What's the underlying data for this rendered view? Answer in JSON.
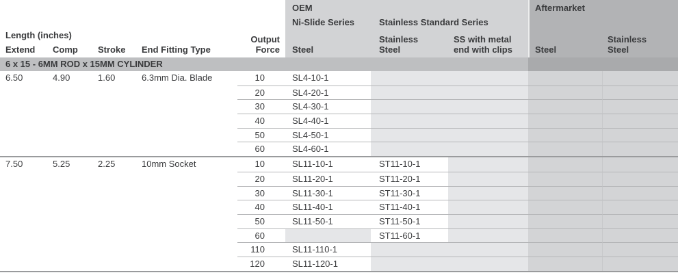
{
  "header": {
    "group_oem": "OEM",
    "group_aftermarket": "Aftermarket",
    "series_nislide": "Ni-Slide Series",
    "series_stainless_standard": "Stainless Standard Series",
    "length_label": "Length (inches)",
    "columns": {
      "extend": "Extend",
      "comp": "Comp",
      "stroke": "Stroke",
      "end_fitting": "End Fitting Type",
      "output_l1": "Output",
      "output_l2": "Force",
      "oem_steel": "Steel",
      "oem_stainless_l1": "Stainless",
      "oem_stainless_l2": "Steel",
      "oem_clips_l1": "SS with metal",
      "oem_clips_l2": "end with clips",
      "am_steel": "Steel",
      "am_stainless_l1": "Stainless",
      "am_stainless_l2": "Steel"
    }
  },
  "section_title": "6 x 15 - 6MM ROD x 15MM CYLINDER",
  "colors": {
    "oem_band": "#d2d3d5",
    "aftermarket_band": "#b2b3b5",
    "section_band": "#bebfc1",
    "section_band_aftermarket": "#a9aaac",
    "empty_cell": "#e5e6e8",
    "aftermarket_cell": "#d3d4d6",
    "row_line": "#b5b6b8",
    "block_line": "#9a9b9d",
    "text": "#3a3b3d"
  },
  "table": {
    "blocks": [
      {
        "extend": "6.50",
        "comp": "4.90",
        "stroke": "1.60",
        "end_fitting": "6.3mm Dia. Blade",
        "rows": [
          {
            "force": "10",
            "oem_steel": "SL4-10-1",
            "oem_stainless": "",
            "oem_ss_clips": "",
            "am_steel": "",
            "am_stainless": ""
          },
          {
            "force": "20",
            "oem_steel": "SL4-20-1",
            "oem_stainless": "",
            "oem_ss_clips": "",
            "am_steel": "",
            "am_stainless": ""
          },
          {
            "force": "30",
            "oem_steel": "SL4-30-1",
            "oem_stainless": "",
            "oem_ss_clips": "",
            "am_steel": "",
            "am_stainless": ""
          },
          {
            "force": "40",
            "oem_steel": "SL4-40-1",
            "oem_stainless": "",
            "oem_ss_clips": "",
            "am_steel": "",
            "am_stainless": ""
          },
          {
            "force": "50",
            "oem_steel": "SL4-50-1",
            "oem_stainless": "",
            "oem_ss_clips": "",
            "am_steel": "",
            "am_stainless": ""
          },
          {
            "force": "60",
            "oem_steel": "SL4-60-1",
            "oem_stainless": "",
            "oem_ss_clips": "",
            "am_steel": "",
            "am_stainless": ""
          }
        ]
      },
      {
        "extend": "7.50",
        "comp": "5.25",
        "stroke": "2.25",
        "end_fitting": "10mm Socket",
        "rows": [
          {
            "force": "10",
            "oem_steel": "SL11-10-1",
            "oem_stainless": "ST11-10-1",
            "oem_ss_clips": "",
            "am_steel": "",
            "am_stainless": ""
          },
          {
            "force": "20",
            "oem_steel": "SL11-20-1",
            "oem_stainless": "ST11-20-1",
            "oem_ss_clips": "",
            "am_steel": "",
            "am_stainless": ""
          },
          {
            "force": "30",
            "oem_steel": "SL11-30-1",
            "oem_stainless": "ST11-30-1",
            "oem_ss_clips": "",
            "am_steel": "",
            "am_stainless": ""
          },
          {
            "force": "40",
            "oem_steel": "SL11-40-1",
            "oem_stainless": "ST11-40-1",
            "oem_ss_clips": "",
            "am_steel": "",
            "am_stainless": ""
          },
          {
            "force": "50",
            "oem_steel": "SL11-50-1",
            "oem_stainless": "ST11-50-1",
            "oem_ss_clips": "",
            "am_steel": "",
            "am_stainless": ""
          },
          {
            "force": "60",
            "oem_steel": "",
            "oem_stainless": "ST11-60-1",
            "oem_ss_clips": "",
            "am_steel": "",
            "am_stainless": ""
          },
          {
            "force": "110",
            "oem_steel": "SL11-110-1",
            "oem_stainless": "",
            "oem_ss_clips": "",
            "am_steel": "",
            "am_stainless": ""
          },
          {
            "force": "120",
            "oem_steel": "SL11-120-1",
            "oem_stainless": "",
            "oem_ss_clips": "",
            "am_steel": "",
            "am_stainless": ""
          }
        ]
      }
    ]
  }
}
